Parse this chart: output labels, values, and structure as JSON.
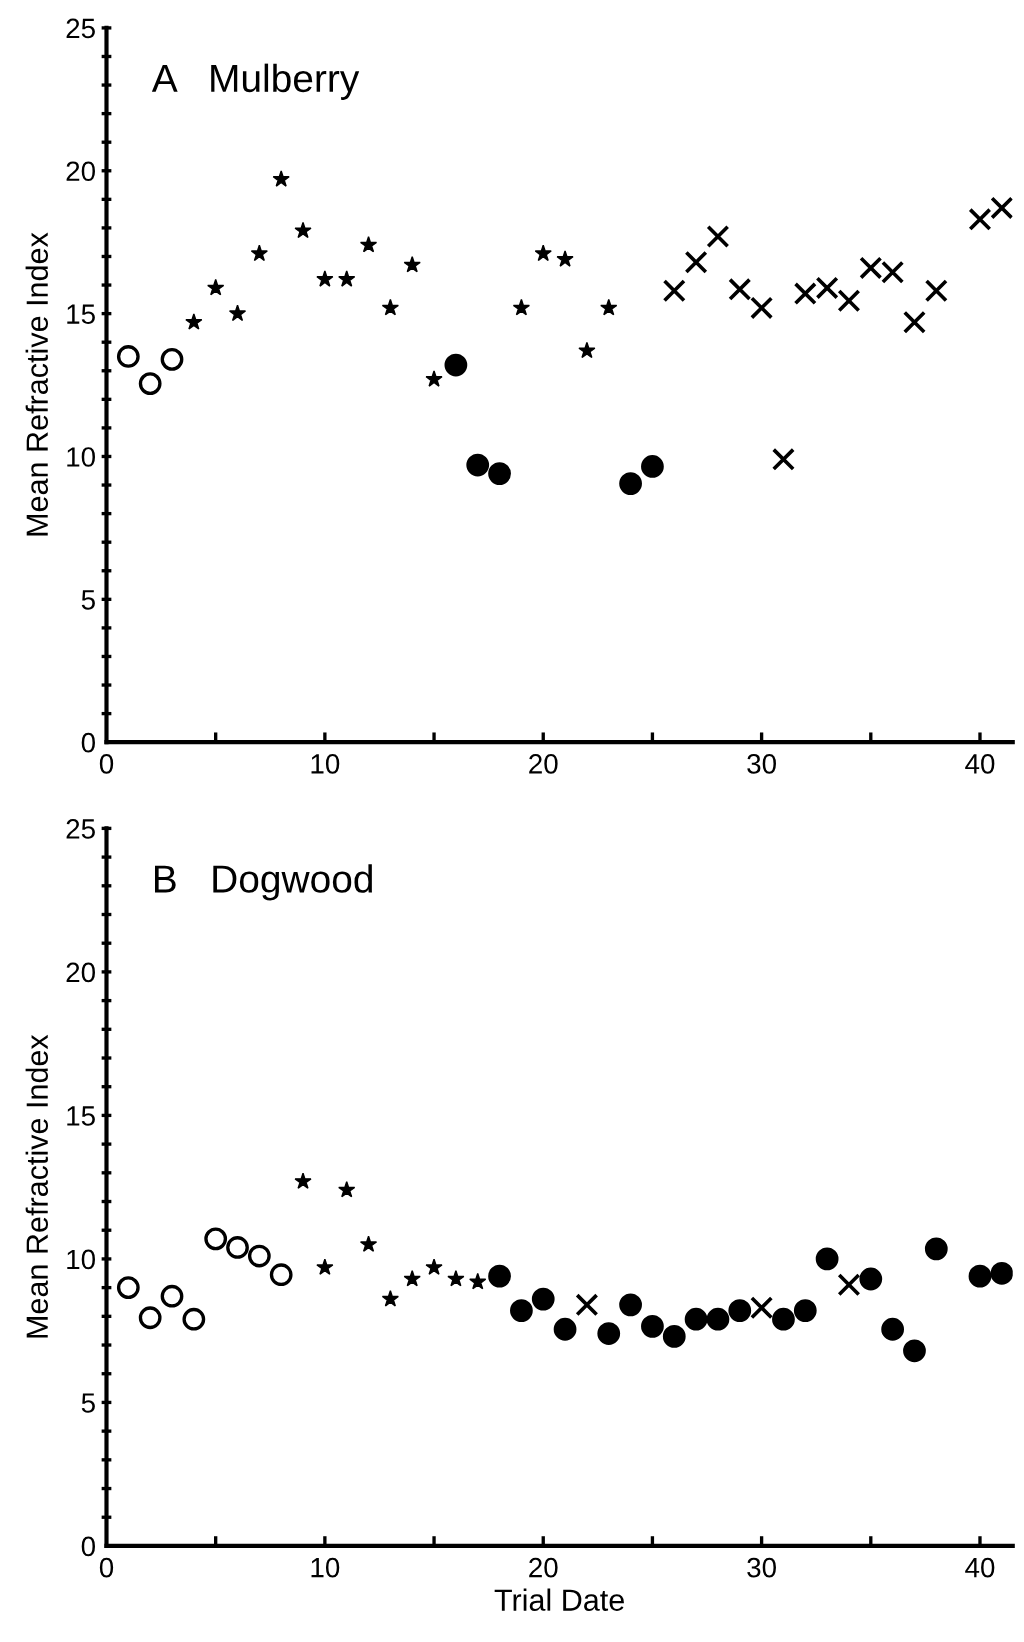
{
  "chart_data": [
    {
      "type": "scatter",
      "title": "A   Mulberry",
      "ylabel": "Mean Refractive Index",
      "xlim": [
        0,
        41.5
      ],
      "ylim": [
        0,
        25
      ],
      "xticks": [
        0,
        {
          "value": 5,
          "label": null
        },
        10,
        {
          "value": 15,
          "label": null
        },
        20,
        {
          "value": 25,
          "label": null
        },
        30,
        {
          "value": 35,
          "label": null
        },
        40
      ],
      "yticks": [
        0,
        {
          "value": 1,
          "label": null
        },
        {
          "value": 2,
          "label": null
        },
        {
          "value": 3,
          "label": null
        },
        {
          "value": 4,
          "label": null
        },
        5,
        {
          "value": 6,
          "label": null
        },
        {
          "value": 7,
          "label": null
        },
        {
          "value": 8,
          "label": null
        },
        {
          "value": 9,
          "label": null
        },
        10,
        {
          "value": 11,
          "label": null
        },
        {
          "value": 12,
          "label": null
        },
        {
          "value": 13,
          "label": null
        },
        {
          "value": 14,
          "label": null
        },
        15,
        {
          "value": 16,
          "label": null
        },
        {
          "value": 17,
          "label": null
        },
        {
          "value": 18,
          "label": null
        },
        {
          "value": 19,
          "label": null
        },
        20,
        {
          "value": 21,
          "label": null
        },
        {
          "value": 22,
          "label": null
        },
        {
          "value": 23,
          "label": null
        },
        {
          "value": 24,
          "label": null
        },
        25
      ],
      "grid": false,
      "legend": false,
      "series": [
        {
          "marker": "circle",
          "color": "#ffffff",
          "x": [
            1,
            2,
            3
          ],
          "values": [
            13.5,
            12.55,
            13.4
          ]
        },
        {
          "marker": "star",
          "color": "#000000",
          "x": [
            4,
            5,
            6,
            7,
            8,
            9,
            10,
            11,
            12,
            13,
            14,
            15,
            19,
            20,
            21,
            22,
            23
          ],
          "values": [
            14.7,
            15.9,
            15.0,
            17.1,
            19.7,
            17.9,
            16.2,
            16.2,
            17.4,
            15.2,
            16.7,
            12.7,
            15.2,
            17.1,
            16.9,
            13.7,
            15.2
          ]
        },
        {
          "marker": "circle",
          "color": "#000000",
          "x": [
            16,
            17,
            18,
            24,
            25
          ],
          "values": [
            13.2,
            9.7,
            9.4,
            9.05,
            9.65
          ]
        },
        {
          "marker": "cross",
          "color": "#000000",
          "x": [
            26,
            27,
            28,
            29,
            30,
            31,
            32,
            33,
            34,
            35,
            36,
            37,
            38,
            40,
            41
          ],
          "values": [
            15.8,
            16.8,
            17.7,
            15.85,
            15.2,
            9.9,
            15.7,
            15.9,
            15.45,
            16.6,
            16.45,
            14.7,
            15.8,
            18.3,
            18.7
          ]
        }
      ]
    },
    {
      "type": "scatter",
      "title": "B   Dogwood",
      "xlabel": "Trial Date",
      "ylabel": "Mean Refractive Index",
      "xlim": [
        0,
        41.5
      ],
      "ylim": [
        0,
        25
      ],
      "xticks": [
        0,
        {
          "value": 5,
          "label": null
        },
        10,
        {
          "value": 15,
          "label": null
        },
        20,
        {
          "value": 25,
          "label": null
        },
        30,
        {
          "value": 35,
          "label": null
        },
        40
      ],
      "yticks": [
        0,
        {
          "value": 1,
          "label": null
        },
        {
          "value": 2,
          "label": null
        },
        {
          "value": 3,
          "label": null
        },
        {
          "value": 4,
          "label": null
        },
        5,
        {
          "value": 6,
          "label": null
        },
        {
          "value": 7,
          "label": null
        },
        {
          "value": 8,
          "label": null
        },
        {
          "value": 9,
          "label": null
        },
        10,
        {
          "value": 11,
          "label": null
        },
        {
          "value": 12,
          "label": null
        },
        {
          "value": 13,
          "label": null
        },
        {
          "value": 14,
          "label": null
        },
        15,
        {
          "value": 16,
          "label": null
        },
        {
          "value": 17,
          "label": null
        },
        {
          "value": 18,
          "label": null
        },
        {
          "value": 19,
          "label": null
        },
        20,
        {
          "value": 21,
          "label": null
        },
        {
          "value": 22,
          "label": null
        },
        {
          "value": 23,
          "label": null
        },
        {
          "value": 24,
          "label": null
        },
        25
      ],
      "grid": false,
      "legend": false,
      "series": [
        {
          "marker": "circle",
          "color": "#ffffff",
          "x": [
            1,
            2,
            3,
            4,
            5,
            6,
            7,
            8
          ],
          "values": [
            9.0,
            7.95,
            8.7,
            7.9,
            10.7,
            10.4,
            10.1,
            9.45
          ]
        },
        {
          "marker": "star",
          "color": "#000000",
          "x": [
            9,
            10,
            11,
            12,
            13,
            14,
            15,
            16,
            17
          ],
          "values": [
            12.7,
            9.7,
            12.4,
            10.5,
            8.6,
            9.3,
            9.7,
            9.3,
            9.2
          ]
        },
        {
          "marker": "circle",
          "color": "#000000",
          "x": [
            18,
            19,
            20,
            21,
            23,
            24,
            25,
            26,
            27,
            28,
            29,
            31,
            32,
            33,
            35,
            36,
            37,
            38,
            40,
            41
          ],
          "values": [
            9.4,
            8.2,
            8.6,
            7.55,
            7.4,
            8.4,
            7.65,
            7.3,
            7.9,
            7.9,
            8.2,
            7.9,
            8.2,
            10.0,
            9.3,
            7.55,
            6.8,
            10.35,
            9.4,
            9.5
          ]
        },
        {
          "marker": "cross",
          "color": "#000000",
          "x": [
            22,
            30,
            34
          ],
          "values": [
            8.4,
            8.3,
            9.1
          ]
        }
      ]
    }
  ]
}
